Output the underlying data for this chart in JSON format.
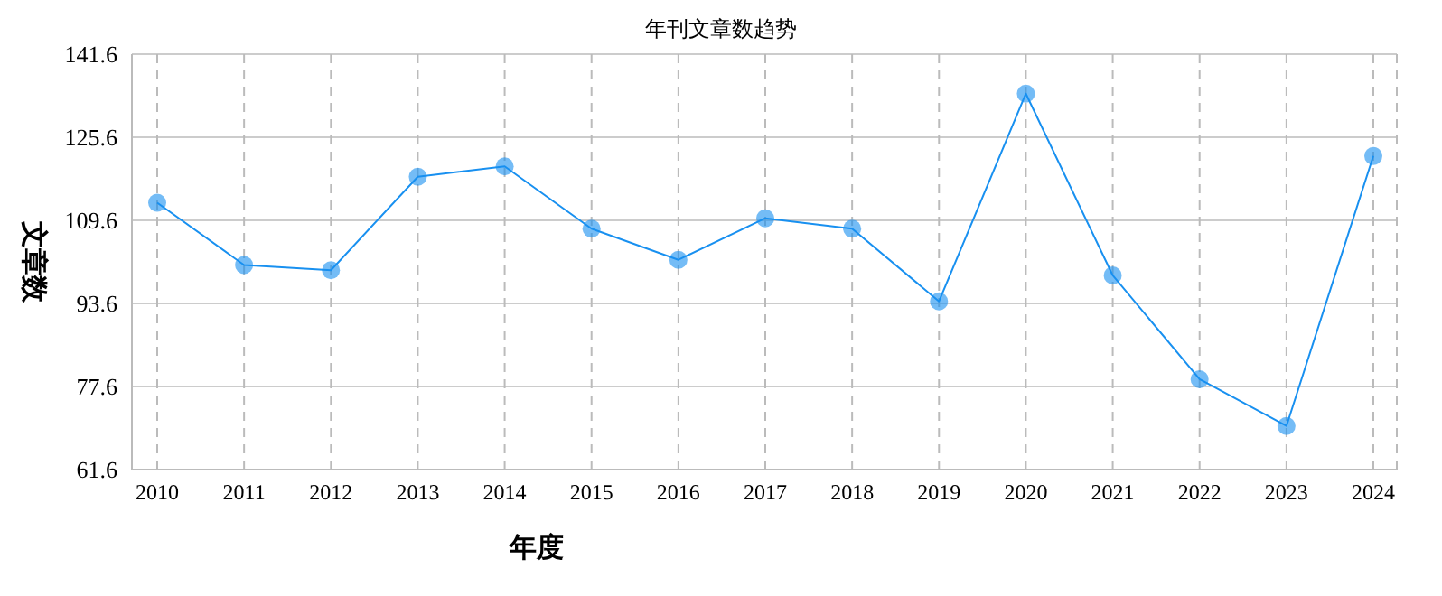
{
  "chart_data": {
    "type": "line",
    "title": "年刊文章数趋势",
    "xlabel": "年度",
    "ylabel": "文章数",
    "categories": [
      "2010",
      "2011",
      "2012",
      "2013",
      "2014",
      "2015",
      "2016",
      "2017",
      "2018",
      "2019",
      "2020",
      "2021",
      "2022",
      "2023",
      "2024"
    ],
    "series": [
      {
        "color": "#1890f0",
        "values": [
          113,
          101,
          100,
          118,
          120,
          108,
          102,
          110,
          108,
          94,
          134,
          99,
          79,
          70,
          122
        ]
      }
    ],
    "ylim": [
      61.6,
      141.6
    ],
    "yticks": [
      61.6,
      77.6,
      93.6,
      109.6,
      125.6,
      141.6
    ],
    "grid": true,
    "marker": "circle",
    "line_style": "solid",
    "legend": false
  }
}
